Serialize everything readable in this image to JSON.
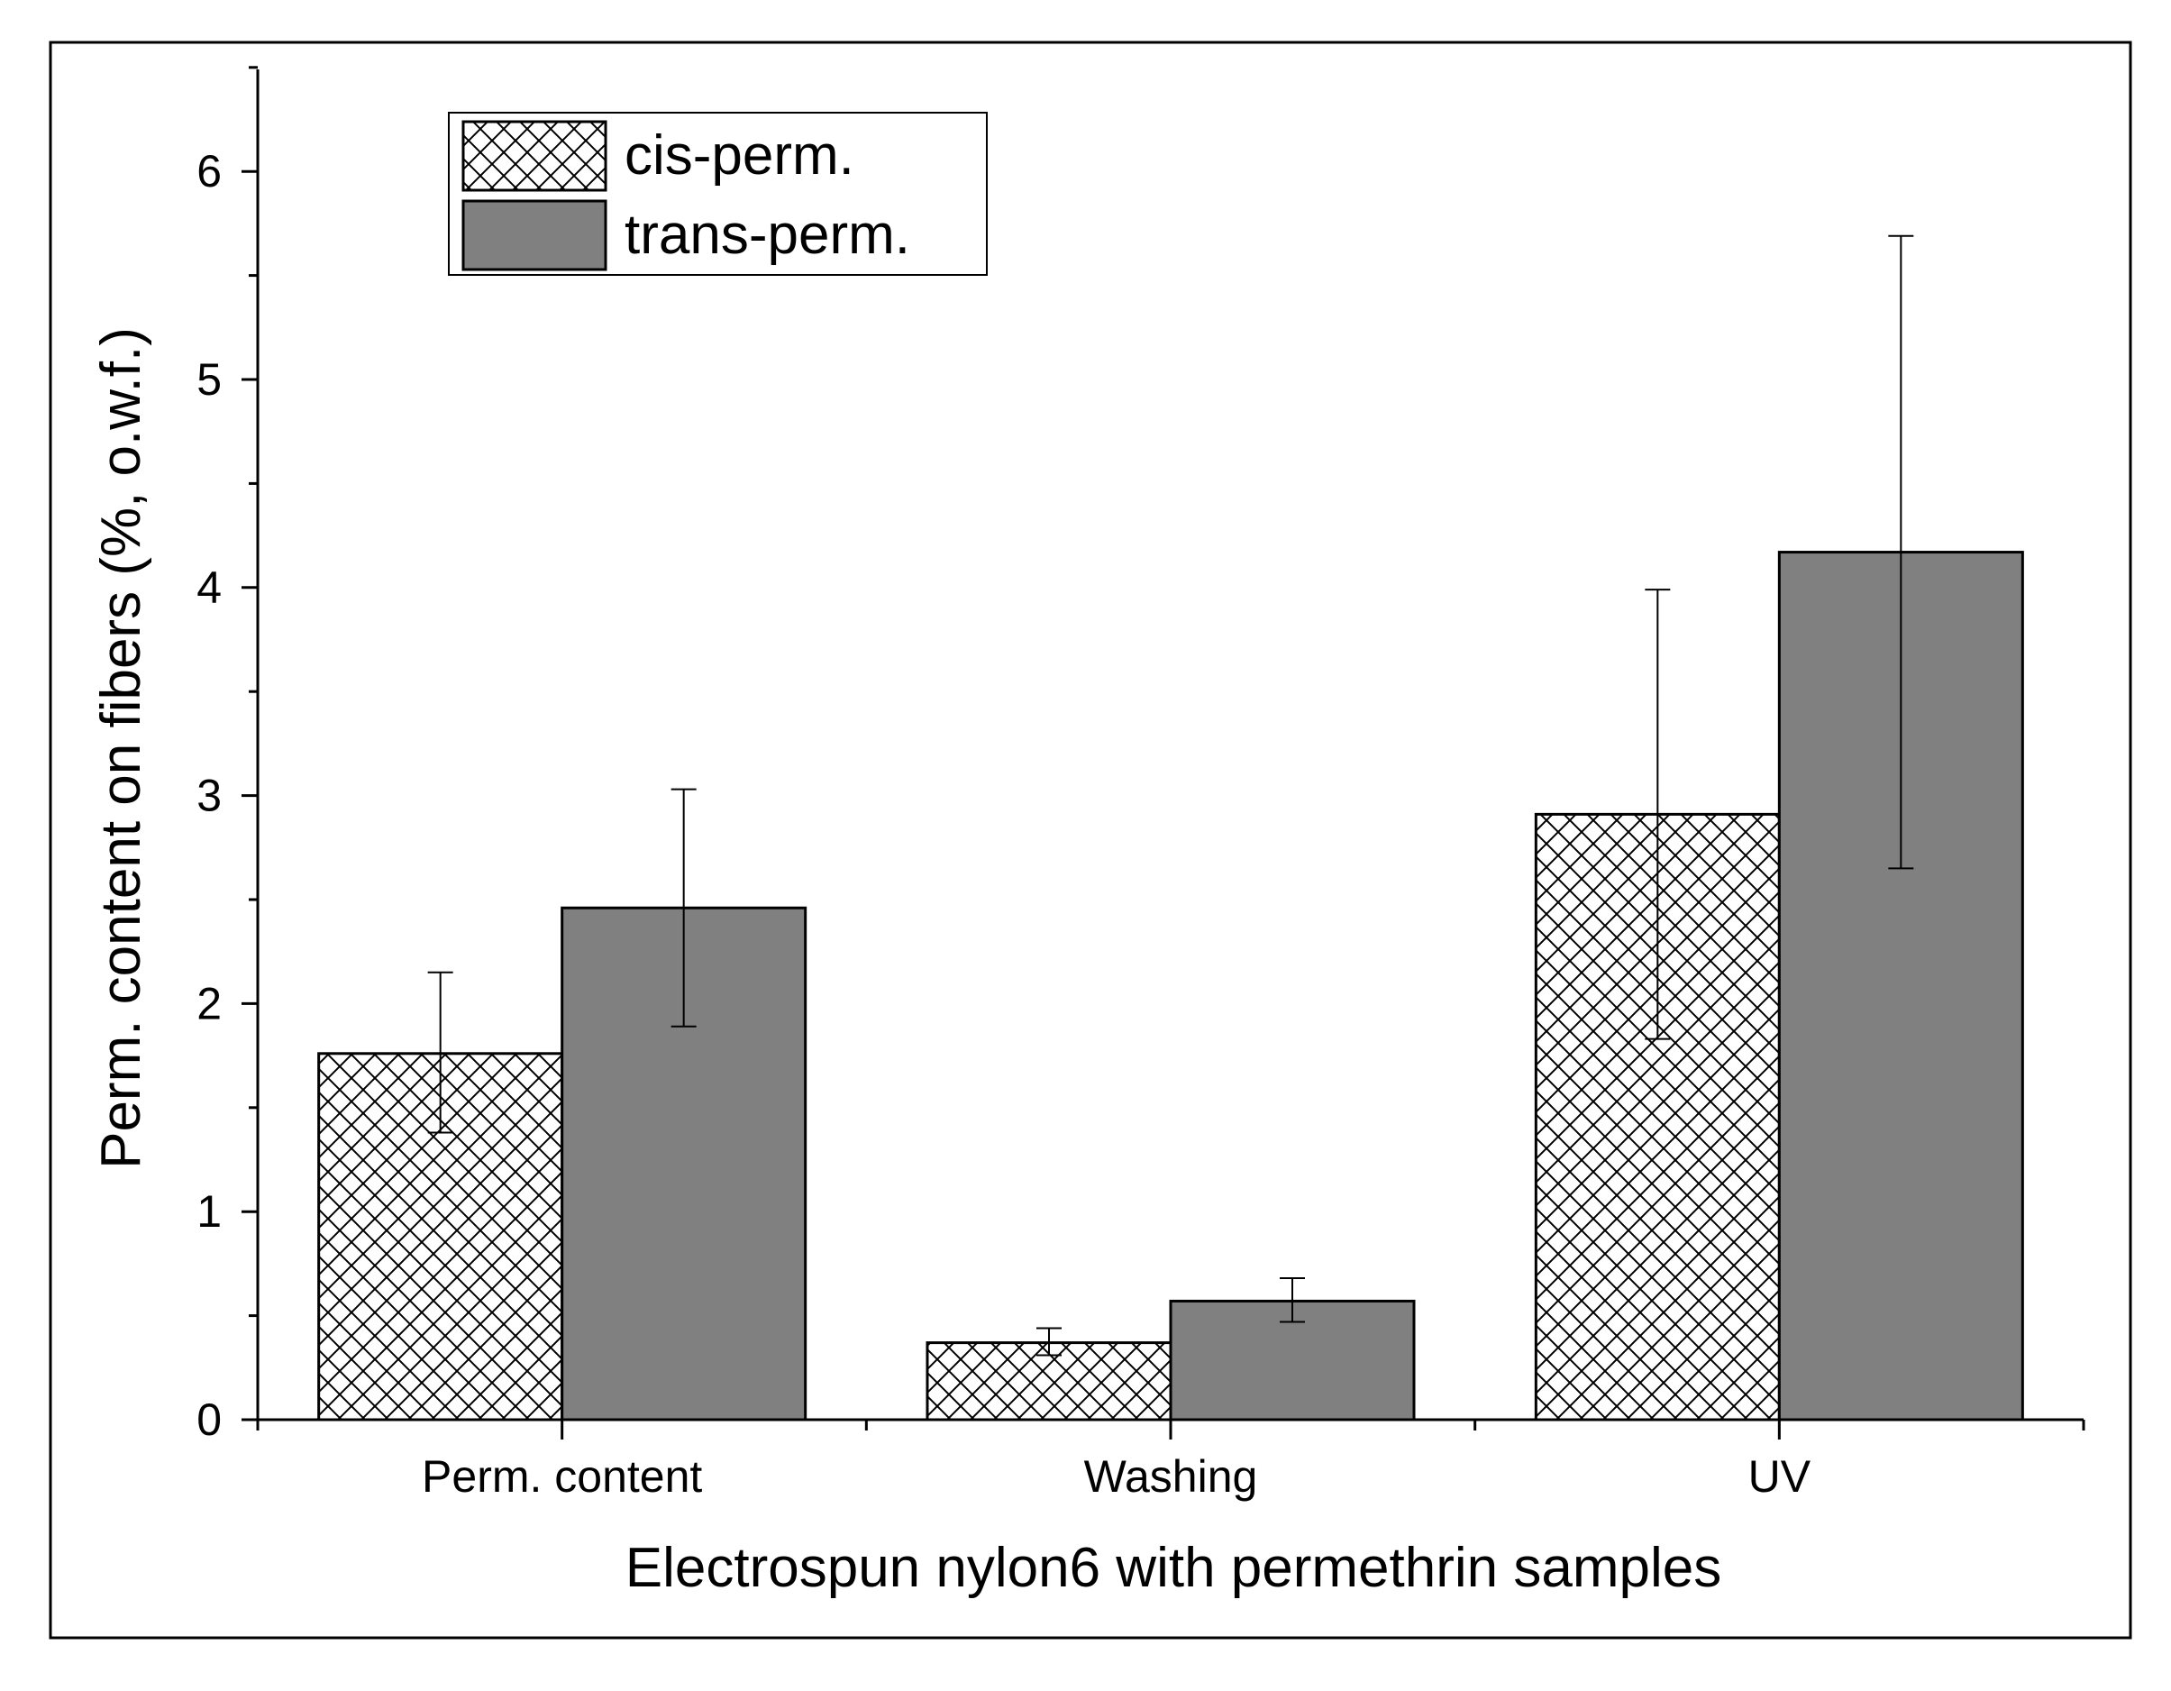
{
  "chart_data": {
    "type": "bar",
    "xlabel": "Electrospun nylon6 with permethrin samples",
    "ylabel": "Perm. content on fibers (%, o.w.f.)",
    "categories": [
      "Perm. content",
      "Washing",
      "UV"
    ],
    "ylim": [
      0,
      6.5
    ],
    "yticks": [
      0,
      1,
      2,
      3,
      4,
      5,
      6
    ],
    "ytick_labels": [
      "0",
      "1",
      "2",
      "3",
      "4",
      "5",
      "6"
    ],
    "series": [
      {
        "name": "cis-perm.",
        "values": [
          1.76,
          0.37,
          2.91
        ],
        "error_low": [
          1.38,
          0.31,
          1.83
        ],
        "error_high": [
          2.15,
          0.44,
          3.99
        ],
        "fill": "crosshatch",
        "color": "#ffffff"
      },
      {
        "name": "trans-perm.",
        "values": [
          2.46,
          0.57,
          4.17
        ],
        "error_low": [
          1.89,
          0.47,
          2.65
        ],
        "error_high": [
          3.03,
          0.68,
          5.69
        ],
        "fill": "solid",
        "color": "#808080"
      }
    ],
    "legend_position": "top-left",
    "grid": false
  }
}
